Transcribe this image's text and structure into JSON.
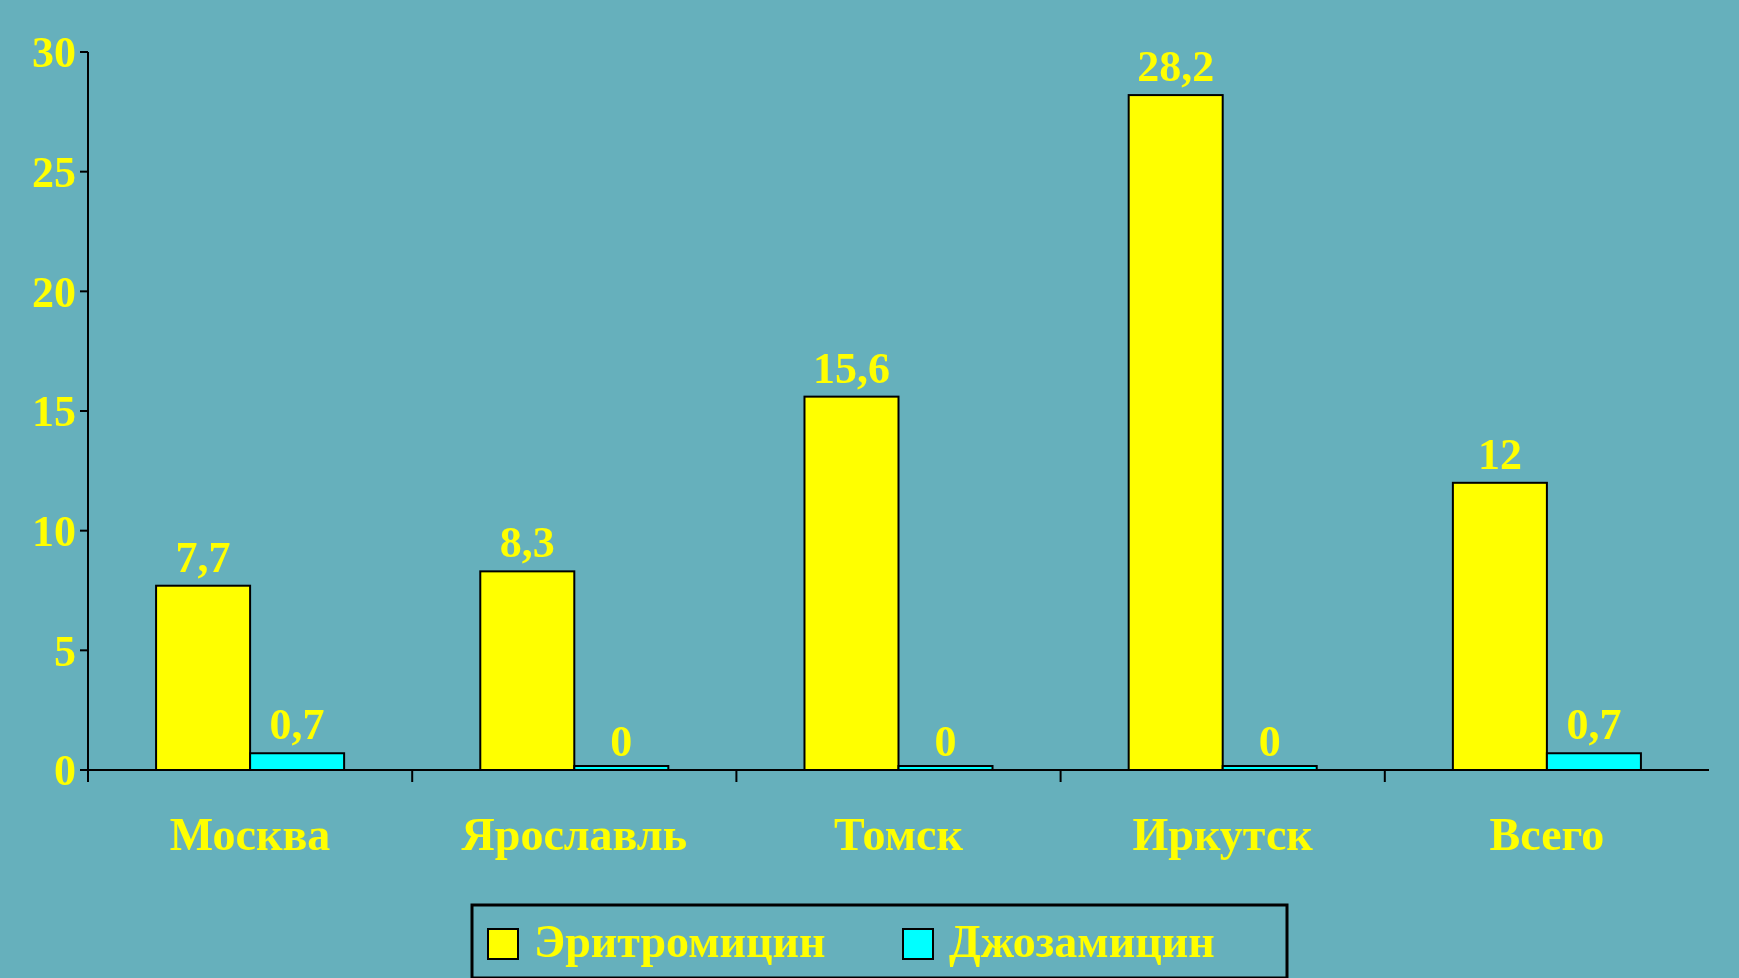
{
  "chart_data": {
    "type": "bar",
    "categories": [
      "Москва",
      "Ярославль",
      "Томск",
      "Иркутск",
      "Всего"
    ],
    "series": [
      {
        "name": "Эритромицин",
        "color": "#ffff00",
        "values": [
          7.7,
          8.3,
          15.6,
          28.2,
          12
        ],
        "value_labels": [
          "7,7",
          "8,3",
          "15,6",
          "28,2",
          "12"
        ]
      },
      {
        "name": "Джозамицин",
        "color": "#00ffff",
        "values": [
          0.7,
          0,
          0,
          0,
          0.7
        ],
        "value_labels": [
          "0,7",
          "0",
          "0",
          "0",
          "0,7"
        ]
      }
    ],
    "ylim": [
      0,
      30
    ],
    "yticks": [
      0,
      5,
      10,
      15,
      20,
      25,
      30
    ],
    "grid": false,
    "legend": "bottom"
  }
}
